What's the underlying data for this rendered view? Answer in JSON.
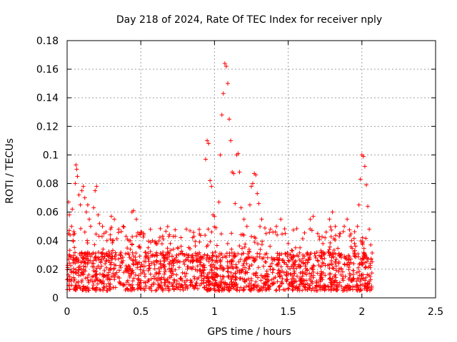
{
  "chart_data": {
    "type": "scatter",
    "title": "Day 218 of 2024, Rate Of TEC Index for receiver nply",
    "xlabel": "GPS time / hours",
    "ylabel": "ROTI / TECUs",
    "xlim": [
      0,
      2.5
    ],
    "ylim": [
      0,
      0.18
    ],
    "x_ticks": [
      0,
      0.5,
      1,
      1.5,
      2,
      2.5
    ],
    "x_tick_labels": [
      "0",
      "0.5",
      "1",
      "1.5",
      "2",
      "2.5"
    ],
    "y_ticks": [
      0,
      0.02,
      0.04,
      0.06,
      0.08,
      0.1,
      0.12,
      0.14,
      0.16,
      0.18
    ],
    "y_tick_labels": [
      "0",
      "0.02",
      "0.04",
      "0.06",
      "0.08",
      "0.1",
      "0.12",
      "0.14",
      "0.16",
      "0.18"
    ],
    "grid": true,
    "marker": "+",
    "marker_color": "#ff0000",
    "series": [
      {
        "name": "ROTI",
        "points": [
          [
            0.01,
            0.067
          ],
          [
            0.015,
            0.058
          ],
          [
            0.02,
            0.044
          ],
          [
            0.03,
            0.05
          ],
          [
            0.035,
            0.062
          ],
          [
            0.04,
            0.04
          ],
          [
            0.05,
            0.045
          ],
          [
            0.055,
            0.08
          ],
          [
            0.06,
            0.093
          ],
          [
            0.065,
            0.09
          ],
          [
            0.07,
            0.085
          ],
          [
            0.08,
            0.072
          ],
          [
            0.09,
            0.065
          ],
          [
            0.1,
            0.075
          ],
          [
            0.11,
            0.078
          ],
          [
            0.12,
            0.07
          ],
          [
            0.13,
            0.06
          ],
          [
            0.14,
            0.065
          ],
          [
            0.15,
            0.055
          ],
          [
            0.16,
            0.05
          ],
          [
            0.18,
            0.063
          ],
          [
            0.19,
            0.075
          ],
          [
            0.2,
            0.078
          ],
          [
            0.21,
            0.058
          ],
          [
            0.22,
            0.052
          ],
          [
            0.24,
            0.05
          ],
          [
            0.25,
            0.045
          ],
          [
            0.27,
            0.04
          ],
          [
            0.3,
            0.057
          ],
          [
            0.32,
            0.055
          ],
          [
            0.35,
            0.048
          ],
          [
            0.38,
            0.05
          ],
          [
            0.4,
            0.043
          ],
          [
            0.42,
            0.04
          ],
          [
            0.44,
            0.06
          ],
          [
            0.45,
            0.061
          ],
          [
            0.47,
            0.055
          ],
          [
            0.5,
            0.046
          ],
          [
            0.52,
            0.044
          ],
          [
            0.55,
            0.035
          ],
          [
            0.6,
            0.03
          ],
          [
            0.65,
            0.032
          ],
          [
            0.7,
            0.038
          ],
          [
            0.72,
            0.043
          ],
          [
            0.75,
            0.035
          ],
          [
            0.8,
            0.03
          ],
          [
            0.85,
            0.028
          ],
          [
            0.9,
            0.025
          ],
          [
            0.94,
            0.097
          ],
          [
            0.95,
            0.11
          ],
          [
            0.96,
            0.108
          ],
          [
            0.97,
            0.082
          ],
          [
            0.98,
            0.078
          ],
          [
            0.99,
            0.058
          ],
          [
            1.0,
            0.057
          ],
          [
            1.01,
            0.049
          ],
          [
            1.03,
            0.067
          ],
          [
            1.04,
            0.1
          ],
          [
            1.05,
            0.128
          ],
          [
            1.06,
            0.143
          ],
          [
            1.07,
            0.164
          ],
          [
            1.08,
            0.162
          ],
          [
            1.09,
            0.15
          ],
          [
            1.1,
            0.125
          ],
          [
            1.11,
            0.11
          ],
          [
            1.12,
            0.088
          ],
          [
            1.13,
            0.087
          ],
          [
            1.14,
            0.066
          ],
          [
            1.15,
            0.1
          ],
          [
            1.16,
            0.101
          ],
          [
            1.17,
            0.088
          ],
          [
            1.18,
            0.063
          ],
          [
            1.2,
            0.055
          ],
          [
            1.22,
            0.05
          ],
          [
            1.24,
            0.065
          ],
          [
            1.25,
            0.078
          ],
          [
            1.26,
            0.08
          ],
          [
            1.27,
            0.087
          ],
          [
            1.28,
            0.086
          ],
          [
            1.29,
            0.073
          ],
          [
            1.3,
            0.066
          ],
          [
            1.32,
            0.055
          ],
          [
            1.35,
            0.045
          ],
          [
            1.38,
            0.048
          ],
          [
            1.42,
            0.05
          ],
          [
            1.45,
            0.055
          ],
          [
            1.48,
            0.045
          ],
          [
            1.5,
            0.038
          ],
          [
            1.55,
            0.035
          ],
          [
            1.6,
            0.03
          ],
          [
            1.65,
            0.055
          ],
          [
            1.67,
            0.057
          ],
          [
            1.7,
            0.045
          ],
          [
            1.75,
            0.042
          ],
          [
            1.78,
            0.055
          ],
          [
            1.8,
            0.06
          ],
          [
            1.82,
            0.05
          ],
          [
            1.85,
            0.045
          ],
          [
            1.88,
            0.05
          ],
          [
            1.9,
            0.055
          ],
          [
            1.93,
            0.04
          ],
          [
            1.95,
            0.038
          ],
          [
            1.97,
            0.05
          ],
          [
            1.98,
            0.065
          ],
          [
            1.99,
            0.083
          ],
          [
            2.0,
            0.1
          ],
          [
            2.01,
            0.099
          ],
          [
            2.02,
            0.092
          ],
          [
            2.03,
            0.079
          ],
          [
            2.04,
            0.064
          ],
          [
            2.05,
            0.048
          ],
          [
            2.06,
            0.037
          ]
        ],
        "dense_band": {
          "x_range": [
            0.0,
            2.07
          ],
          "y_range": [
            0.005,
            0.032
          ],
          "density": 1450,
          "seed": 218
        }
      }
    ]
  }
}
